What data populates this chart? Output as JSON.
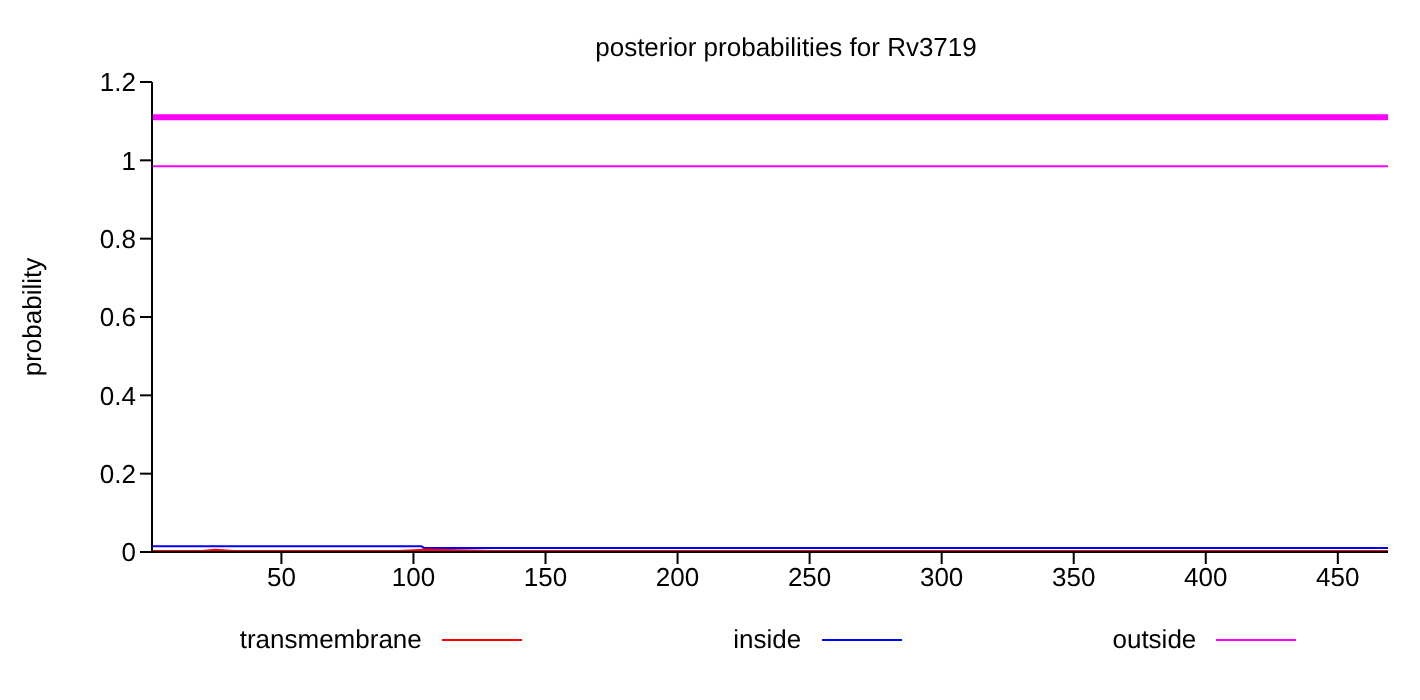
{
  "chart_data": {
    "type": "line",
    "title": "posterior probabilities for Rv3719",
    "ylabel": "probability",
    "xlim": [
      1,
      469
    ],
    "xticks": [
      50,
      100,
      150,
      200,
      250,
      300,
      350,
      400,
      450
    ],
    "ylim": [
      0,
      1.2
    ],
    "yticks": [
      0,
      0.2,
      0.4,
      0.6,
      0.8,
      1,
      1.2
    ],
    "grid": false,
    "legend": "bottom",
    "ref_lines": [
      {
        "axis": "y",
        "value": 1.11,
        "color": "#ff00ff"
      }
    ],
    "series": [
      {
        "name": "transmembrane",
        "color": "#ff0000",
        "x": [
          1,
          20,
          25,
          32,
          95,
          105,
          130,
          469
        ],
        "values": [
          0,
          0,
          0.003,
          0,
          0,
          0.004,
          0,
          0
        ]
      },
      {
        "name": "inside",
        "color": "#0000ff",
        "x": [
          1,
          103,
          104,
          469
        ],
        "values": [
          0.015,
          0.015,
          0.01,
          0.01
        ]
      },
      {
        "name": "outside",
        "color": "#ff00ff",
        "x": [
          1,
          469
        ],
        "values": [
          0.985,
          0.985
        ]
      }
    ]
  }
}
